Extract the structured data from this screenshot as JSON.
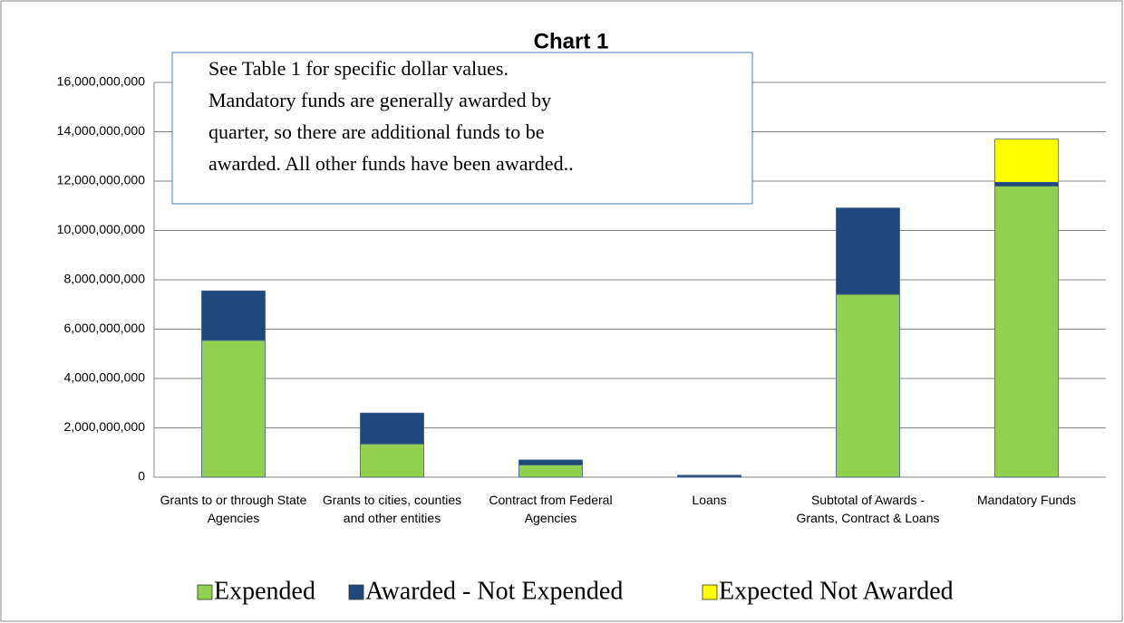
{
  "chart_data": {
    "type": "stacked_bar",
    "title": "Chart 1",
    "annotation": [
      "See Table 1 for specific dollar values.",
      "Mandatory funds are generally awarded by",
      "quarter, so there are additional funds to be",
      "awarded.  All other funds have been awarded.."
    ],
    "categories": [
      "Grants to or through State Agencies",
      "Grants to cities, counties and other entities",
      "Contract from Federal Agencies",
      "Loans",
      "Subtotal of Awards - Grants, Contract & Loans",
      "Mandatory Funds"
    ],
    "series": [
      {
        "name": "Expended",
        "color": "#92d050",
        "values": [
          5550000000,
          1350000000,
          500000000,
          10000000,
          7410000000,
          11800000000
        ]
      },
      {
        "name": "Awarded - Not Expended",
        "color": "#1f497d",
        "values": [
          2000000000,
          1250000000,
          200000000,
          70000000,
          3500000000,
          150000000
        ]
      },
      {
        "name": "Expected Not Awarded",
        "color": "#ffff00",
        "values": [
          0,
          0,
          0,
          0,
          0,
          1750000000
        ]
      }
    ],
    "ylim": [
      0,
      16000000000
    ],
    "yticks": [
      0,
      {
        "value": 2000000000,
        "label": "2,000,000,000"
      },
      {
        "value": 4000000000,
        "label": "4,000,000,000"
      },
      {
        "value": 6000000000,
        "label": "6,000,000,000"
      },
      {
        "value": 8000000000,
        "label": "8,000,000,000"
      },
      {
        "value": 10000000000,
        "label": "10,000,000,000"
      },
      {
        "value": 12000000000,
        "label": "12,000,000,000"
      },
      {
        "value": 14000000000,
        "label": "14,000,000,000"
      },
      {
        "value": 16000000000,
        "label": "16,000,000,000"
      }
    ],
    "grid": true,
    "legend": "bottom"
  }
}
